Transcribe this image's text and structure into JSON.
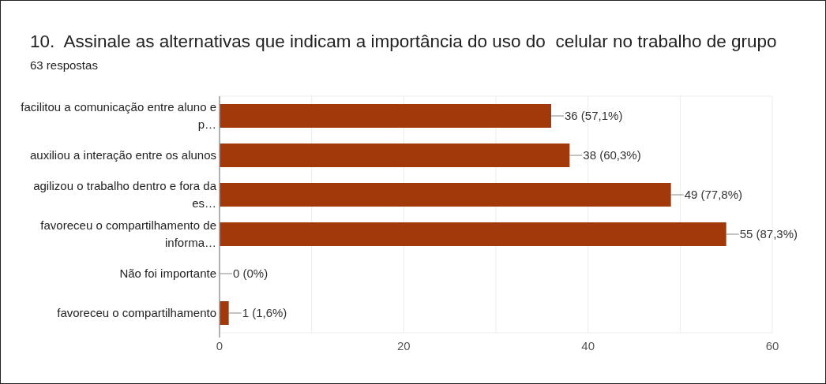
{
  "chart_data": {
    "type": "bar",
    "orientation": "horizontal",
    "title": "10.  Assinale as alternativas que indicam a importância do uso do  celular no trabalho de grupo",
    "subtitle": "63 respostas",
    "categories": [
      "facilitou a comunicação entre aluno e p…",
      "auxiliou a interação entre os alunos",
      "agilizou o trabalho dentro e fora da es…",
      "favoreceu o compartilhamento de informa…",
      "Não foi importante",
      "favoreceu o compartilhamento"
    ],
    "values": [
      36,
      38,
      49,
      55,
      0,
      1
    ],
    "value_labels": [
      "36 (57,1%)",
      "38 (60,3%)",
      "49 (77,8%)",
      "55 (87,3%)",
      "0 (0%)",
      "1 (1,6%)"
    ],
    "color": "#a2390b",
    "xlim": [
      0,
      60
    ],
    "xticks": [
      0,
      {
        "value": 10,
        "label": null
      },
      20,
      {
        "value": 30,
        "label": null
      },
      40,
      {
        "value": 50,
        "label": null
      },
      60
    ],
    "grid": "x"
  }
}
